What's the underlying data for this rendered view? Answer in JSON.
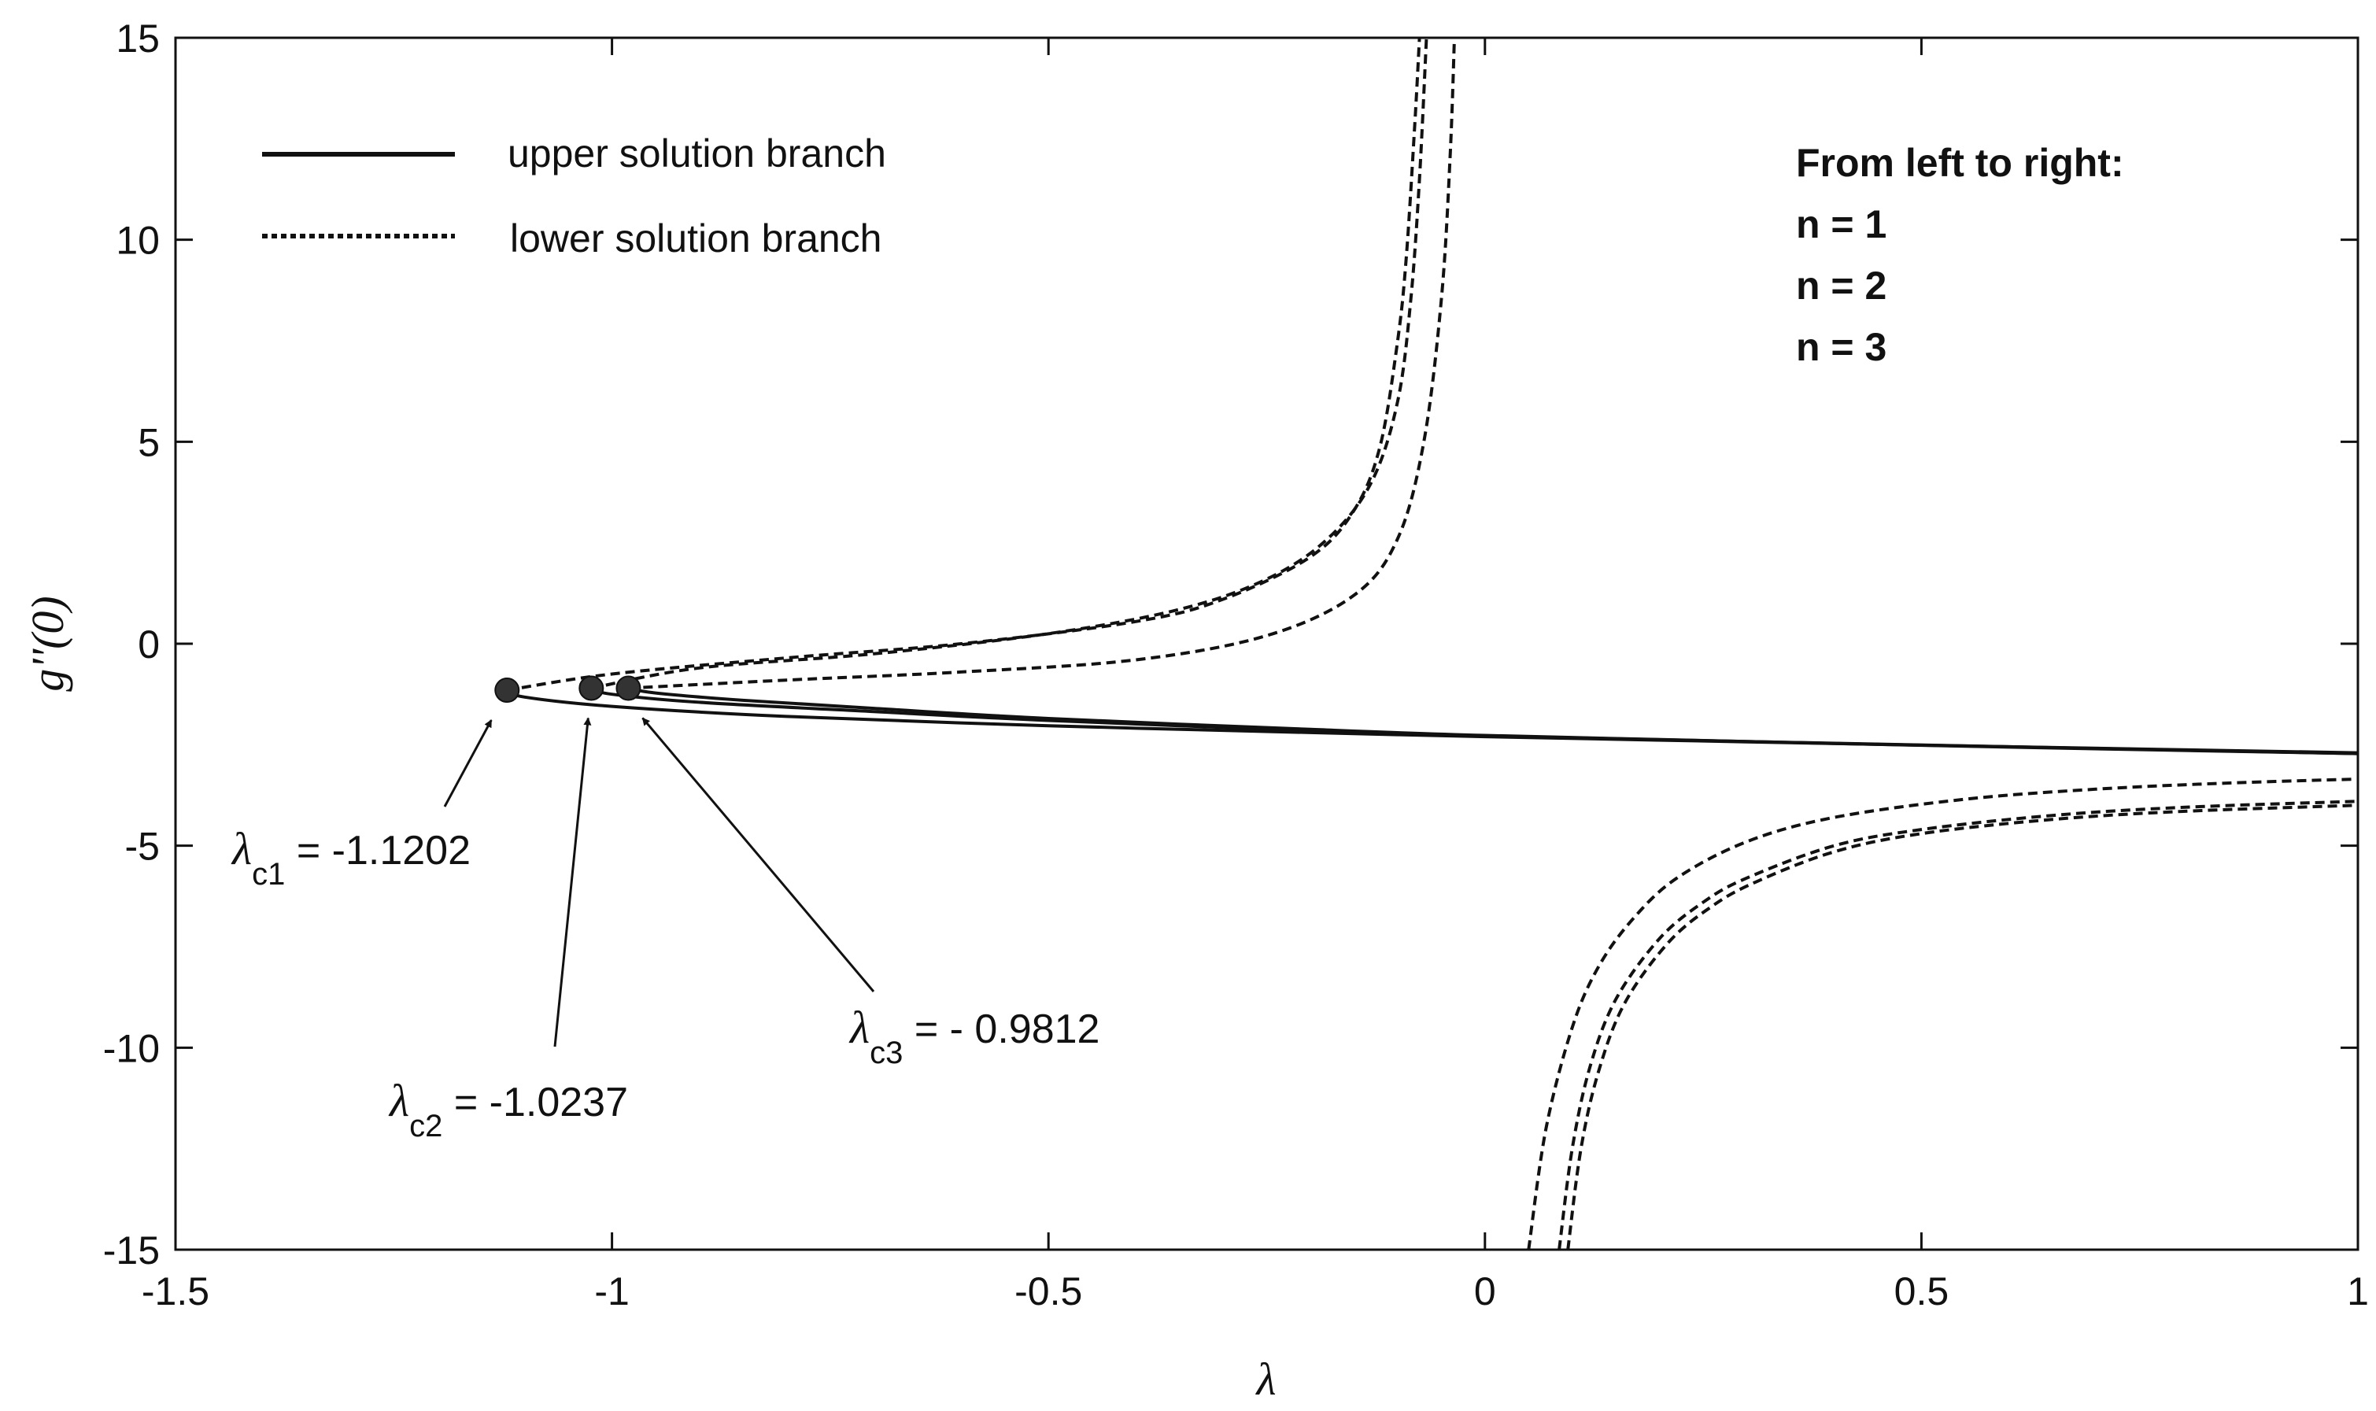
{
  "chart_data": {
    "type": "line",
    "xlabel": "λ",
    "ylabel": "g''(0)",
    "xlim": [
      -1.5,
      1
    ],
    "ylim": [
      -15,
      15
    ],
    "xticks": [
      -1.5,
      -1,
      -0.5,
      0,
      0.5,
      1
    ],
    "yticks": [
      -15,
      -10,
      -5,
      0,
      5,
      10,
      15
    ],
    "xtick_labels": [
      "-1.5",
      "-1",
      "-0.5",
      "0",
      "0.5",
      "1"
    ],
    "ytick_labels": [
      "-15",
      "-10",
      "-5",
      "0",
      "5",
      "10",
      "15"
    ],
    "grid": false,
    "legend": {
      "placement": "top-left",
      "entries": [
        {
          "label": "upper solution branch",
          "style": "solid"
        },
        {
          "label": "lower solution branch",
          "style": "dashed"
        }
      ]
    },
    "note": [
      "From left to right:",
      "n = 1",
      "n = 2",
      "n = 3"
    ],
    "series": [
      {
        "branch": "upper",
        "n": 1,
        "style": "solid",
        "x": [
          -1.1202,
          -1.1,
          -1.0,
          -0.8,
          -0.5,
          -0.2,
          0.0,
          0.3,
          0.6,
          1.0
        ],
        "y": [
          -1.15,
          -1.32,
          -1.55,
          -1.8,
          -2.03,
          -2.2,
          -2.3,
          -2.43,
          -2.55,
          -2.7
        ]
      },
      {
        "branch": "upper",
        "n": 2,
        "style": "solid",
        "x": [
          -1.0237,
          -1.0,
          -0.9,
          -0.7,
          -0.5,
          -0.2,
          0.0,
          0.3,
          0.6,
          1.0
        ],
        "y": [
          -1.1,
          -1.25,
          -1.45,
          -1.68,
          -1.9,
          -2.15,
          -2.28,
          -2.42,
          -2.55,
          -2.72
        ]
      },
      {
        "branch": "upper",
        "n": 3,
        "style": "solid",
        "x": [
          -0.9812,
          -0.95,
          -0.85,
          -0.7,
          -0.5,
          -0.2,
          0.0,
          0.3,
          0.6,
          1.0
        ],
        "y": [
          -1.1,
          -1.22,
          -1.4,
          -1.6,
          -1.85,
          -2.12,
          -2.27,
          -2.42,
          -2.56,
          -2.72
        ]
      },
      {
        "branch": "lower",
        "n": 1,
        "style": "dashed",
        "x": [
          -1.1202,
          -1.0,
          -0.8,
          -0.6,
          -0.4,
          -0.3,
          -0.2,
          -0.15,
          -0.12,
          -0.1,
          -0.09,
          -0.08,
          -0.075
        ],
        "y": [
          -1.15,
          -0.75,
          -0.35,
          0.0,
          0.55,
          1.1,
          2.15,
          3.3,
          4.9,
          7.5,
          9.6,
          13.0,
          15.0
        ]
      },
      {
        "branch": "lower",
        "n": 2,
        "style": "dashed",
        "x": [
          -1.0237,
          -0.9,
          -0.7,
          -0.5,
          -0.35,
          -0.25,
          -0.18,
          -0.13,
          -0.1,
          -0.085,
          -0.075,
          -0.067
        ],
        "y": [
          -1.1,
          -0.6,
          -0.25,
          0.25,
          0.85,
          1.6,
          2.6,
          4.0,
          6.0,
          8.5,
          11.5,
          15.0
        ]
      },
      {
        "branch": "lower",
        "n": 3,
        "style": "dashed",
        "x": [
          -0.9812,
          -0.8,
          -0.6,
          -0.4,
          -0.25,
          -0.15,
          -0.1,
          -0.07,
          -0.05,
          -0.04,
          -0.035
        ],
        "y": [
          -1.1,
          -0.9,
          -0.7,
          -0.4,
          0.2,
          1.2,
          2.6,
          5.0,
          8.5,
          12.0,
          15.0
        ]
      },
      {
        "branch": "lower",
        "n": 1,
        "style": "dashed",
        "x": [
          0.05,
          0.07,
          0.1,
          0.13,
          0.17,
          0.22,
          0.3,
          0.4,
          0.55,
          0.7,
          0.85,
          1.0
        ],
        "y": [
          -15.0,
          -12.0,
          -9.5,
          -8.0,
          -6.8,
          -5.8,
          -4.9,
          -4.3,
          -3.85,
          -3.6,
          -3.45,
          -3.35
        ]
      },
      {
        "branch": "lower",
        "n": 2,
        "style": "dashed",
        "x": [
          0.085,
          0.1,
          0.12,
          0.15,
          0.2,
          0.25,
          0.3,
          0.4,
          0.5,
          0.65,
          0.8,
          1.0
        ],
        "y": [
          -15.0,
          -12.5,
          -10.5,
          -8.8,
          -7.3,
          -6.4,
          -5.8,
          -5.0,
          -4.6,
          -4.25,
          -4.05,
          -3.9
        ]
      },
      {
        "branch": "lower",
        "n": 3,
        "style": "dashed",
        "x": [
          0.095,
          0.11,
          0.13,
          0.16,
          0.21,
          0.26,
          0.31,
          0.4,
          0.5,
          0.65,
          0.8,
          1.0
        ],
        "y": [
          -15.0,
          -12.5,
          -10.6,
          -8.9,
          -7.4,
          -6.5,
          -5.9,
          -5.15,
          -4.7,
          -4.35,
          -4.15,
          -4.0
        ]
      }
    ],
    "critical_points": [
      {
        "x": -1.1202,
        "y": -1.15,
        "label_symbol": "λ",
        "label_sub": "c1",
        "label_value": " = -1.1202"
      },
      {
        "x": -1.0237,
        "y": -1.1,
        "label_symbol": "λ",
        "label_sub": "c2",
        "label_value": " = -1.0237"
      },
      {
        "x": -0.9812,
        "y": -1.1,
        "label_symbol": "λ",
        "label_sub": "c3",
        "label_value": " = - 0.9812"
      }
    ]
  }
}
